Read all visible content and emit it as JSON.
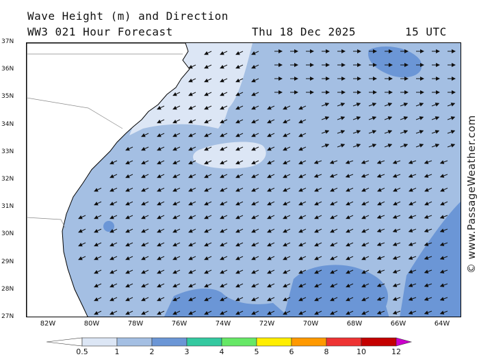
{
  "header": {
    "title": "Wave Height (m) and Direction",
    "subtitle": "WW3 021 Hour Forecast",
    "date": "Thu 18 Dec 2025",
    "time": "15 UTC"
  },
  "credit": "© www.PassageWeather.com",
  "map": {
    "lat_labels": [
      "37N",
      "36N",
      "35N",
      "34N",
      "33N",
      "32N",
      "31N",
      "30N",
      "29N",
      "28N",
      "27N"
    ],
    "lon_labels": [
      "82W",
      "80W",
      "78W",
      "76W",
      "74W",
      "72W",
      "70W",
      "68W",
      "66W",
      "64W"
    ],
    "lat_range": [
      27,
      37
    ],
    "lon_range": [
      -83,
      -63.5
    ],
    "land_color": "#ffffff",
    "ocean_colors": {
      "0.5-1": "#dce6f5",
      "1-2": "#a4bfe3",
      "2-3": "#6b96d6"
    }
  },
  "colorbar": {
    "labels": [
      "0.5",
      "1",
      "2",
      "3",
      "4",
      "5",
      "6",
      "8",
      "10",
      "12"
    ],
    "colors": [
      "#dce6f5",
      "#a4bfe3",
      "#6b96d6",
      "#34c9a0",
      "#66e866",
      "#ffee00",
      "#ff9900",
      "#ee3333",
      "#c40000",
      "#cc00cc"
    ]
  }
}
